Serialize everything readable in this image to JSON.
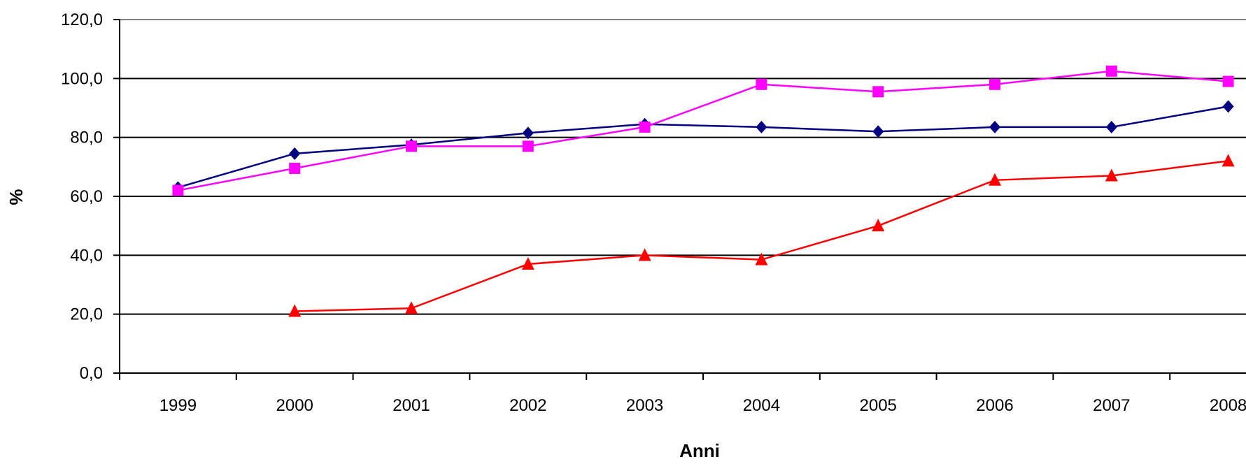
{
  "chart_data": {
    "type": "line",
    "xlabel": "Anni",
    "ylabel": "%",
    "ylim": [
      0,
      120
    ],
    "yticks": [
      "0,0",
      "20,0",
      "40,0",
      "60,0",
      "80,0",
      "100,0",
      "120,0"
    ],
    "categories": [
      "1999",
      "2000",
      "2001",
      "2002",
      "2003",
      "2004",
      "2005",
      "2006",
      "2007",
      "2008"
    ],
    "grid": "horizontal",
    "legend": "none",
    "series": [
      {
        "color": "#000080",
        "marker": "diamond",
        "values": [
          63.0,
          74.5,
          77.5,
          81.5,
          84.5,
          83.5,
          82.0,
          83.5,
          83.5,
          90.5
        ]
      },
      {
        "color": "#FF00FF",
        "marker": "square",
        "values": [
          62.0,
          69.5,
          77.0,
          77.0,
          83.5,
          98.0,
          95.5,
          98.0,
          102.5,
          99.0
        ]
      },
      {
        "color": "#FF0000",
        "marker": "triangle",
        "values": [
          null,
          21.0,
          22.0,
          37.0,
          40.0,
          38.5,
          50.0,
          65.5,
          67.0,
          72.0
        ]
      }
    ]
  }
}
